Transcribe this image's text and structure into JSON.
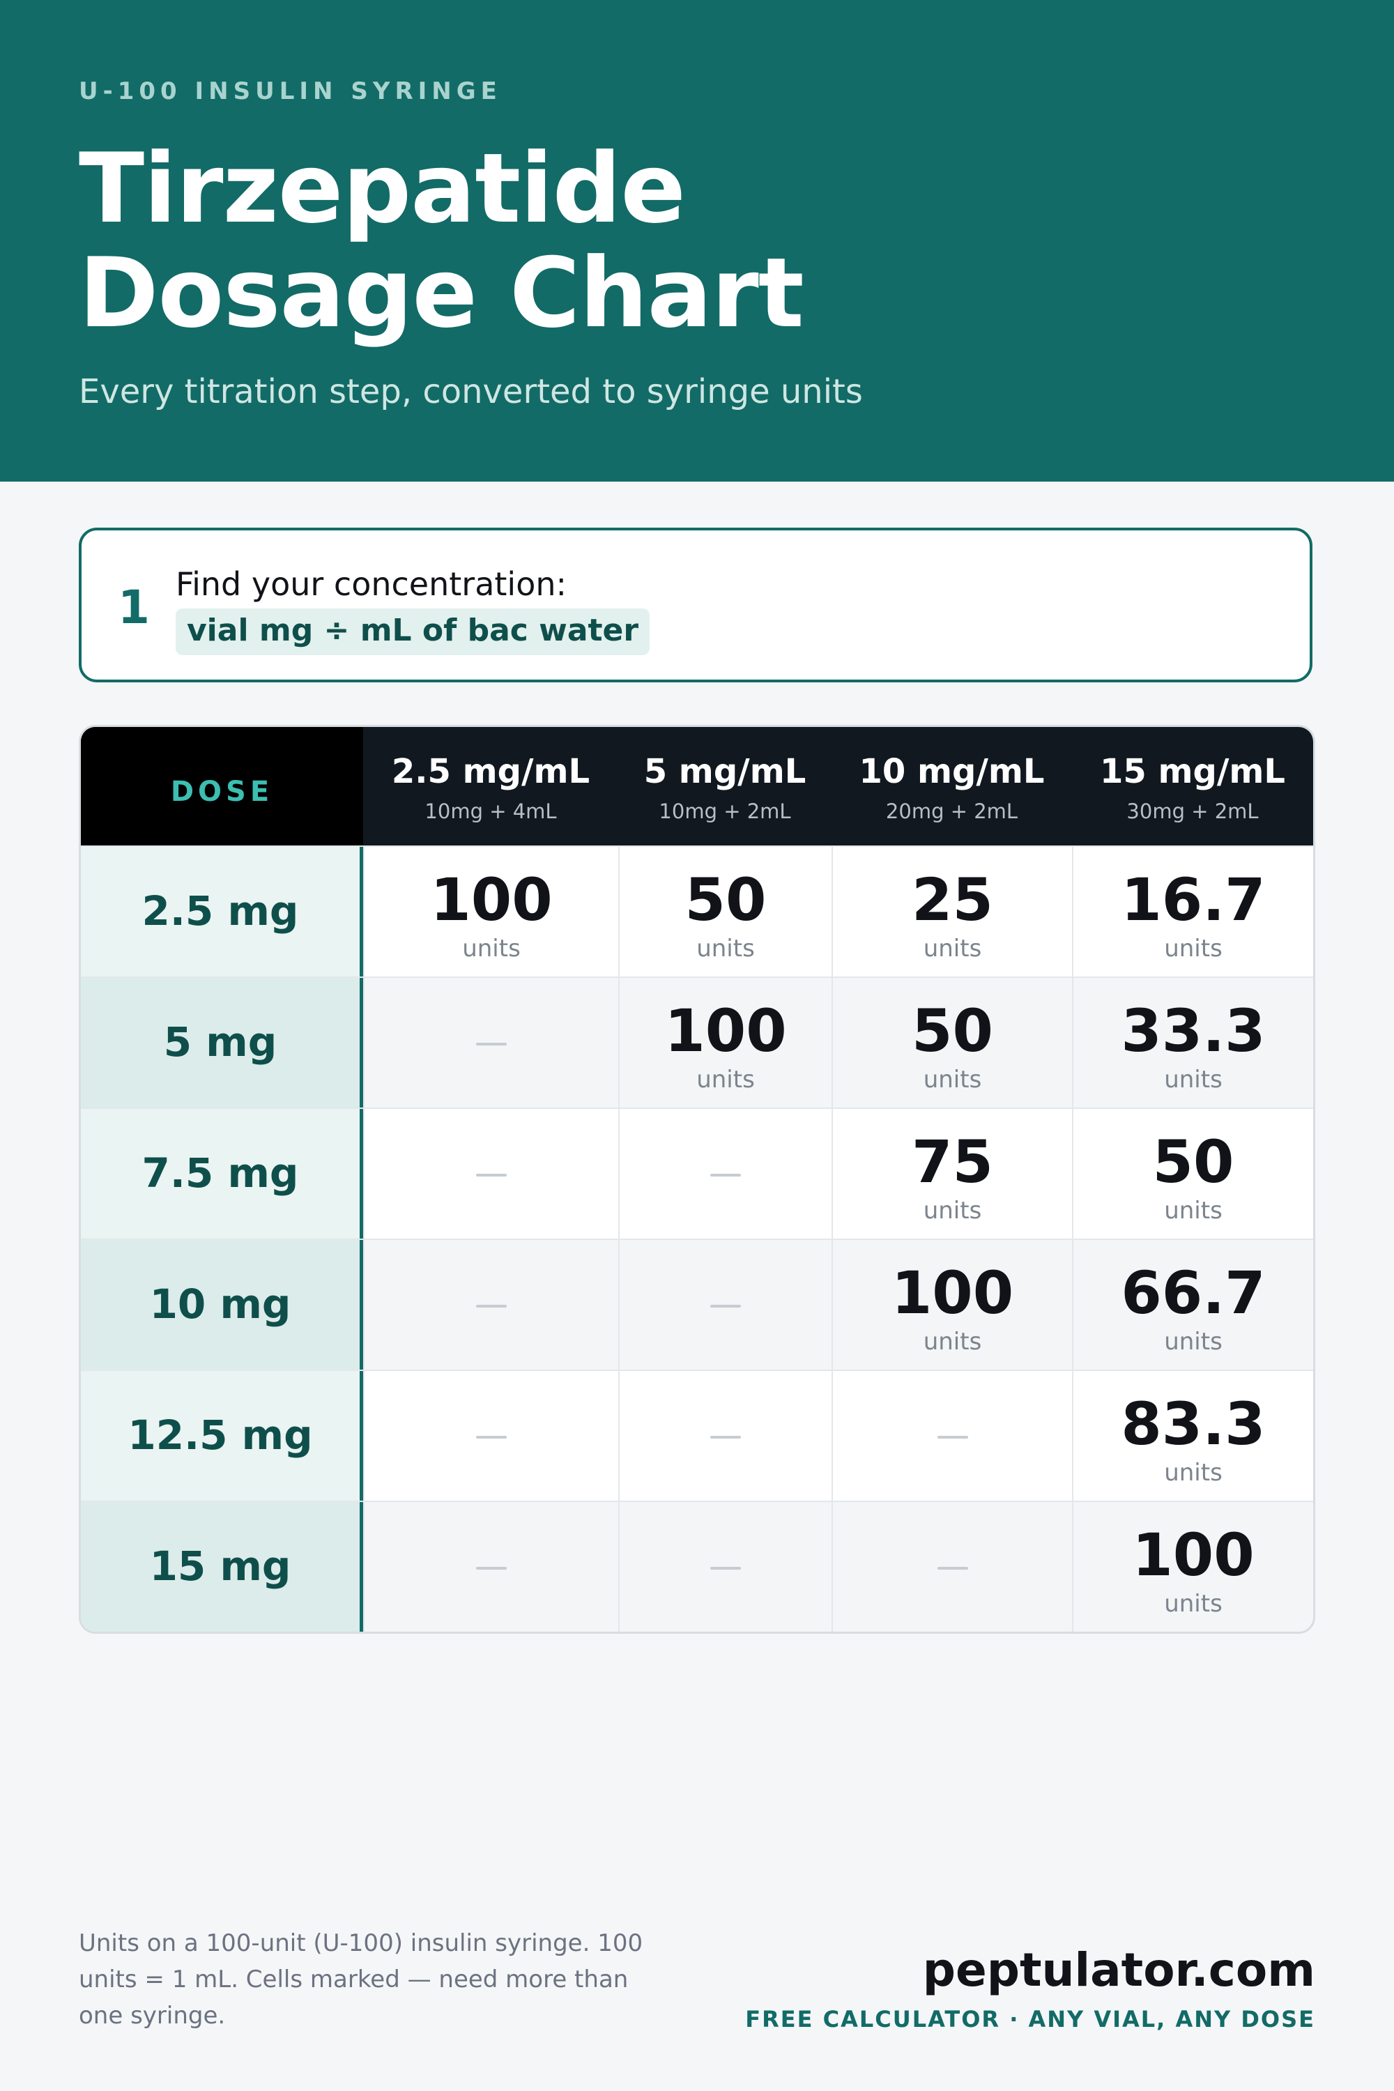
{
  "header": {
    "eyebrow": "U-100 INSULIN SYRINGE",
    "title_line1": "Tirzepatide",
    "title_line2": "Dosage Chart",
    "subtitle": "Every titration step, converted to syringe units"
  },
  "step": {
    "number": "1",
    "text": "Find your concentration:",
    "formula": "vial mg ÷ mL of bac water"
  },
  "table": {
    "dose_header": "DOSE",
    "unit_label": "units",
    "columns": [
      {
        "conc": "2.5 mg/mL",
        "mix": "10mg + 4mL"
      },
      {
        "conc": "5 mg/mL",
        "mix": "10mg + 2mL"
      },
      {
        "conc": "10 mg/mL",
        "mix": "20mg + 2mL"
      },
      {
        "conc": "15 mg/mL",
        "mix": "30mg + 2mL"
      }
    ],
    "rows": [
      {
        "dose": "2.5 mg",
        "values": [
          "100",
          "50",
          "25",
          "16.7"
        ]
      },
      {
        "dose": "5 mg",
        "values": [
          null,
          "100",
          "50",
          "33.3"
        ]
      },
      {
        "dose": "7.5 mg",
        "values": [
          null,
          null,
          "75",
          "50"
        ]
      },
      {
        "dose": "10 mg",
        "values": [
          null,
          null,
          "100",
          "66.7"
        ]
      },
      {
        "dose": "12.5 mg",
        "values": [
          null,
          null,
          null,
          "83.3"
        ]
      },
      {
        "dose": "15 mg",
        "values": [
          null,
          null,
          null,
          "100"
        ]
      }
    ]
  },
  "footer": {
    "note": "Units on a 100-unit (U-100) insulin syringe. 100 units = 1 mL. Cells marked — need more than one syringe.",
    "brand": "peptulator.com",
    "tagline": "FREE CALCULATOR · ANY VIAL, ANY DOSE"
  },
  "colors": {
    "brand_teal": "#126b66",
    "header_dark": "#111820",
    "dose_accent": "#3bbfb1"
  }
}
